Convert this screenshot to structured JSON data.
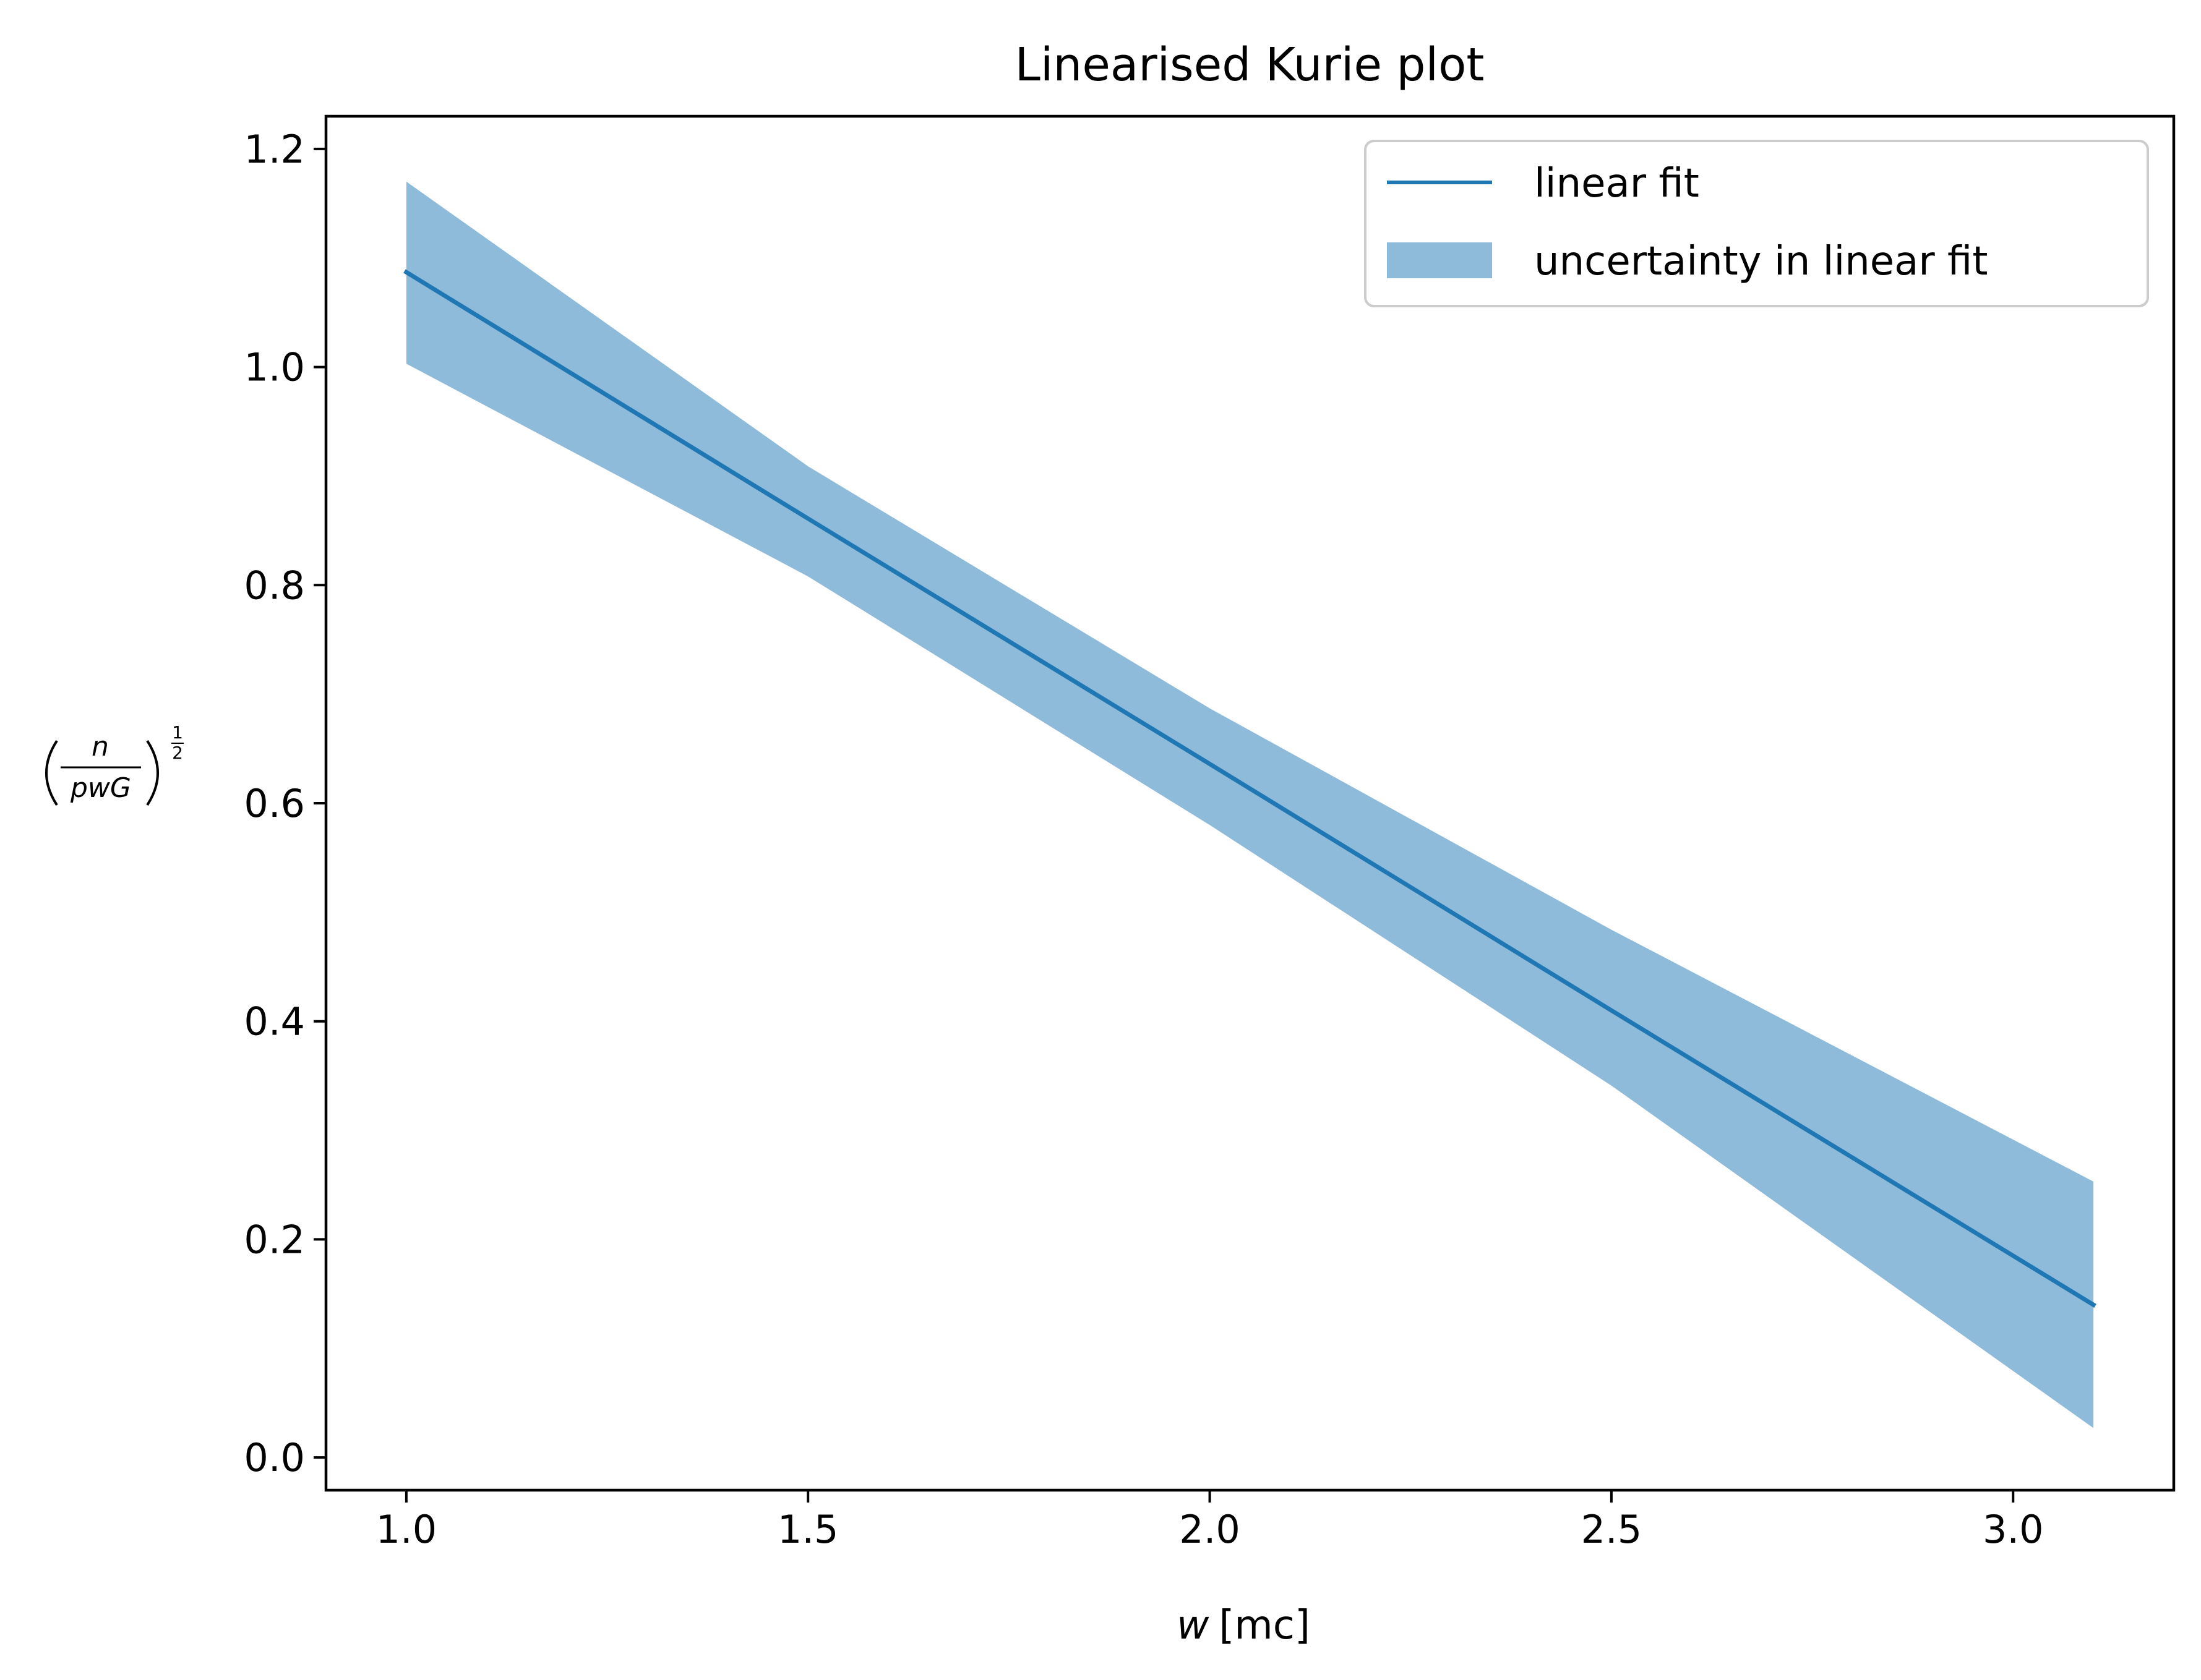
{
  "chart_data": {
    "type": "line",
    "title": "Linearised Kurie plot",
    "xlabel": {
      "symbol": "w",
      "unit": "[mc]"
    },
    "ylabel": {
      "numerator": "n",
      "denominator": "pwG",
      "exponent_numerator": "1",
      "exponent_denominator": "2"
    },
    "xlim": [
      0.9,
      3.2
    ],
    "ylim": [
      -0.03,
      1.23
    ],
    "xticks": [
      1.0,
      1.5,
      2.0,
      2.5,
      3.0
    ],
    "xtick_labels": [
      "1.0",
      "1.5",
      "2.0",
      "2.5",
      "3.0"
    ],
    "yticks": [
      0.0,
      0.2,
      0.4,
      0.6,
      0.8,
      1.0,
      1.2
    ],
    "ytick_labels": [
      "0.0",
      "0.2",
      "0.4",
      "0.6",
      "0.8",
      "1.0",
      "1.2"
    ],
    "grid": false,
    "legend_position": "top-right",
    "series": [
      {
        "name": "linear fit",
        "kind": "line",
        "color": "#1f77b4",
        "x": [
          1.0,
          1.5,
          2.0,
          2.5,
          3.1
        ],
        "y": [
          1.087,
          0.861,
          0.636,
          0.41,
          0.14
        ]
      },
      {
        "name": "uncertainty in linear fit",
        "kind": "band",
        "color": "#8fbbda",
        "x": [
          1.0,
          1.5,
          2.0,
          2.5,
          3.1
        ],
        "y_upper": [
          1.17,
          0.909,
          0.687,
          0.484,
          0.253
        ],
        "y_lower": [
          1.003,
          0.808,
          0.58,
          0.341,
          0.027
        ]
      }
    ]
  }
}
